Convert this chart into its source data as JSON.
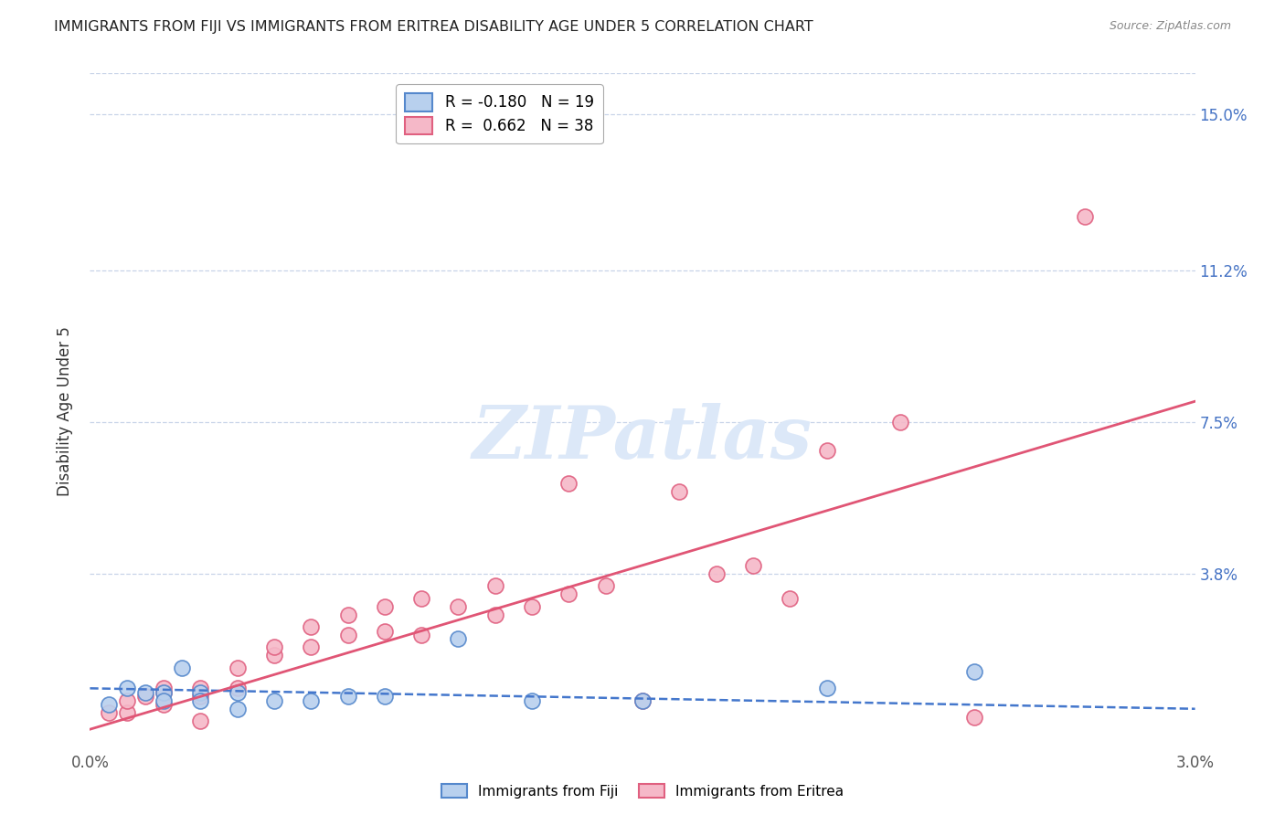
{
  "title": "IMMIGRANTS FROM FIJI VS IMMIGRANTS FROM ERITREA DISABILITY AGE UNDER 5 CORRELATION CHART",
  "source": "Source: ZipAtlas.com",
  "xlabel_bottom_left": "0.0%",
  "xlabel_bottom_right": "3.0%",
  "ylabel": "Disability Age Under 5",
  "ytick_labels": [
    "15.0%",
    "11.2%",
    "7.5%",
    "3.8%"
  ],
  "ytick_values": [
    0.15,
    0.112,
    0.075,
    0.038
  ],
  "xmin": 0.0,
  "xmax": 0.03,
  "ymin": -0.005,
  "ymax": 0.16,
  "fiji_color": "#b8d0ee",
  "eritrea_color": "#f5b8c8",
  "fiji_edge_color": "#5588cc",
  "eritrea_edge_color": "#e06080",
  "fiji_line_color": "#4477cc",
  "eritrea_line_color": "#e05575",
  "background_color": "#ffffff",
  "grid_color": "#c8d4e8",
  "watermark_text": "ZIPatlas",
  "watermark_color": "#dce8f8",
  "legend1_r": "-0.180",
  "legend1_n": "19",
  "legend2_r": "0.662",
  "legend2_n": "38",
  "fiji_scatter_x": [
    0.0005,
    0.001,
    0.0015,
    0.002,
    0.002,
    0.0025,
    0.003,
    0.003,
    0.004,
    0.004,
    0.005,
    0.006,
    0.007,
    0.008,
    0.01,
    0.012,
    0.015,
    0.02,
    0.024
  ],
  "fiji_scatter_y": [
    0.006,
    0.01,
    0.009,
    0.009,
    0.007,
    0.015,
    0.009,
    0.007,
    0.009,
    0.005,
    0.007,
    0.007,
    0.008,
    0.008,
    0.022,
    0.007,
    0.007,
    0.01,
    0.014
  ],
  "eritrea_scatter_x": [
    0.0005,
    0.001,
    0.001,
    0.0015,
    0.002,
    0.002,
    0.002,
    0.003,
    0.003,
    0.003,
    0.004,
    0.004,
    0.005,
    0.005,
    0.006,
    0.006,
    0.007,
    0.007,
    0.008,
    0.008,
    0.009,
    0.009,
    0.01,
    0.011,
    0.011,
    0.012,
    0.013,
    0.013,
    0.014,
    0.015,
    0.016,
    0.017,
    0.018,
    0.019,
    0.02,
    0.022,
    0.024,
    0.027
  ],
  "eritrea_scatter_y": [
    0.004,
    0.004,
    0.007,
    0.008,
    0.006,
    0.009,
    0.01,
    0.008,
    0.01,
    0.002,
    0.01,
    0.015,
    0.018,
    0.02,
    0.02,
    0.025,
    0.023,
    0.028,
    0.024,
    0.03,
    0.023,
    0.032,
    0.03,
    0.028,
    0.035,
    0.03,
    0.033,
    0.06,
    0.035,
    0.007,
    0.058,
    0.038,
    0.04,
    0.032,
    0.068,
    0.075,
    0.003,
    0.125
  ],
  "fiji_line_x0": 0.0,
  "fiji_line_x1": 0.03,
  "fiji_line_y0": 0.01,
  "fiji_line_y1": 0.005,
  "eritrea_line_x0": 0.0,
  "eritrea_line_x1": 0.03,
  "eritrea_line_y0": 0.0,
  "eritrea_line_y1": 0.08
}
